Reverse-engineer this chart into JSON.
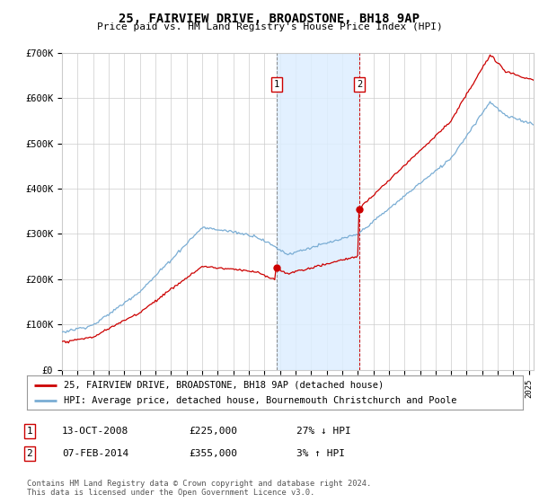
{
  "title": "25, FAIRVIEW DRIVE, BROADSTONE, BH18 9AP",
  "subtitle": "Price paid vs. HM Land Registry's House Price Index (HPI)",
  "legend_line1": "25, FAIRVIEW DRIVE, BROADSTONE, BH18 9AP (detached house)",
  "legend_line2": "HPI: Average price, detached house, Bournemouth Christchurch and Poole",
  "table_rows": [
    {
      "num": "1",
      "date": "13-OCT-2008",
      "price": "£225,000",
      "hpi": "27% ↓ HPI"
    },
    {
      "num": "2",
      "date": "07-FEB-2014",
      "price": "£355,000",
      "hpi": "3% ↑ HPI"
    }
  ],
  "footnote": "Contains HM Land Registry data © Crown copyright and database right 2024.\nThis data is licensed under the Open Government Licence v3.0.",
  "ylim": [
    0,
    700000
  ],
  "yticks": [
    0,
    100000,
    200000,
    300000,
    400000,
    500000,
    600000,
    700000
  ],
  "ytick_labels": [
    "£0",
    "£100K",
    "£200K",
    "£300K",
    "£400K",
    "£500K",
    "£600K",
    "£700K"
  ],
  "sale1_year": 2008.79,
  "sale1_price": 225000,
  "sale2_year": 2014.1,
  "sale2_price": 355000,
  "sale_color": "#cc0000",
  "sale1_vline_color": "#888888",
  "sale2_vline_color": "#cc0000",
  "hpi_color": "#7aadd4",
  "shade_color": "#ddeeff",
  "grid_color": "#cccccc",
  "background_color": "#ffffff",
  "xlim_start": 1995,
  "xlim_end": 2025.3
}
